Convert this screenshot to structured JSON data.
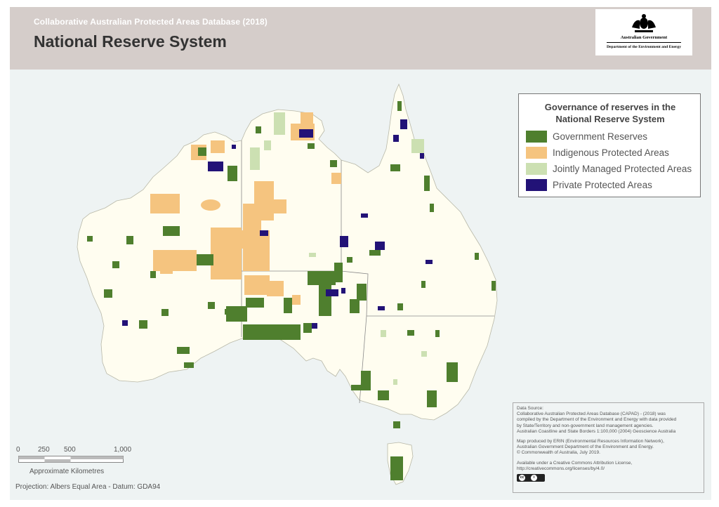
{
  "header": {
    "subtitle": "Collaborative Australian Protected Areas Database (2018)",
    "title": "National Reserve System"
  },
  "logo": {
    "line1": "Australian Government",
    "line2": "Department of the Environment and Energy"
  },
  "legend": {
    "title_line1": "Governance of reserves in the",
    "title_line2": "National Reserve System",
    "items": [
      {
        "label": "Government Reserves",
        "color": "#4f7f2e"
      },
      {
        "label": "Indigenous Protected Areas",
        "color": "#f5c47f"
      },
      {
        "label": "Jointly Managed Protected Areas",
        "color": "#cce0b2"
      },
      {
        "label": "Private Protected Areas",
        "color": "#221277"
      }
    ]
  },
  "colors": {
    "land": "#fffdf0",
    "sea": "#eef3f3",
    "header_bg": "#d5cdca",
    "border": "#777777"
  },
  "source": {
    "l1": "Data Source:",
    "l2": "Collaborative Australian Protected Areas Database (CAPAD) - (2018) was",
    "l3": "compiled by the Department of the Environment and Energy with data provided",
    "l4": "by State/Territory and non-government land management agencies.",
    "l5": "Australian Coastline and State Borders 1:100,000 (2004) Geoscience Australia",
    "l6": "Map produced by ERIN (Environmental Resources Information Network),",
    "l7": "Australian Government Department of the Environment and Energy.",
    "l8": "© Commonwealth of Australia, July 2019.",
    "l9": "Available under a Creative Commons Attribution License,",
    "l10": "http://creativecommons.org/licenses/by/4.0/"
  },
  "scale": {
    "ticks": [
      "0",
      "250",
      "500",
      "1,000"
    ],
    "unit": "Approximate Kilometres"
  },
  "projection": "Projection: Albers Equal Area - Datum: GDA94"
}
